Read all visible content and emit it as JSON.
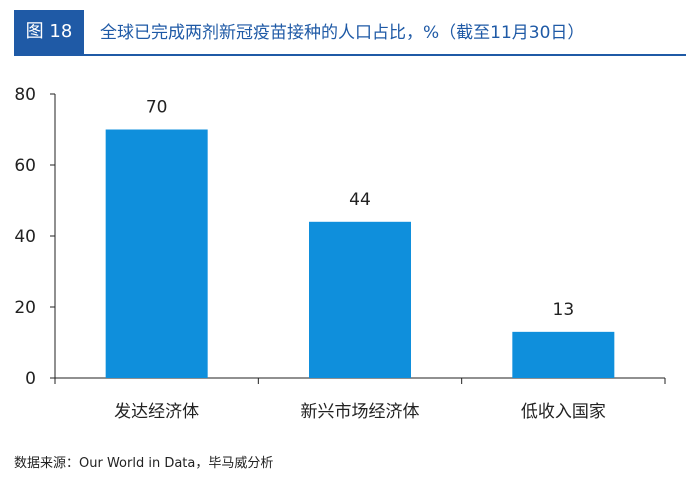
{
  "header": {
    "badge": "图 18",
    "title": "全球已完成两剂新冠疫苗接种的人口占比，%（截至11月30日）"
  },
  "source": "数据来源：Our World in Data，毕马威分析",
  "colors": {
    "accent": "#1f5aa6",
    "bar": "#0f8fdc",
    "axis": "#222222"
  },
  "chart_data": {
    "type": "bar",
    "categories": [
      "发达经济体",
      "新兴市场经济体",
      "低收入国家"
    ],
    "values": [
      70,
      44,
      13
    ],
    "data_labels": [
      "70",
      "44",
      "13"
    ],
    "yticks": [
      0,
      20,
      40,
      60,
      80
    ],
    "ylim": [
      0,
      80
    ],
    "title": "",
    "xlabel": "",
    "ylabel": "",
    "grid": false
  }
}
